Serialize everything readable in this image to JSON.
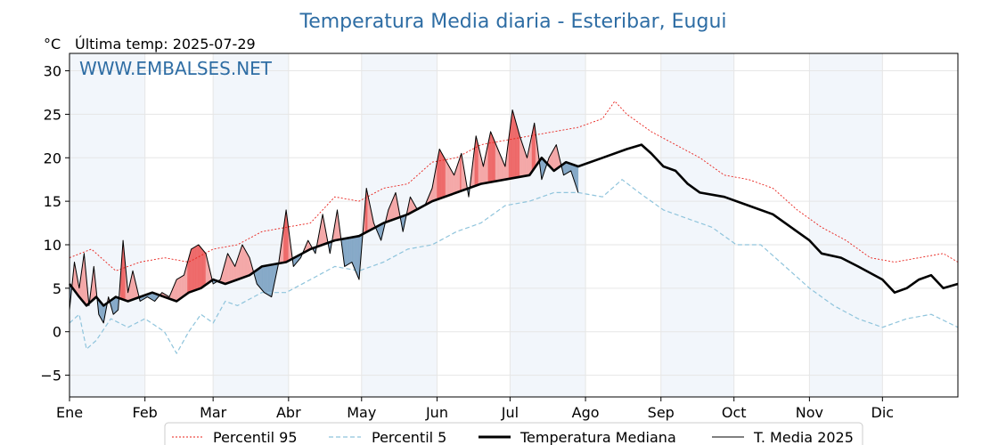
{
  "chart_data": {
    "type": "line",
    "title": "Temperatura Media diaria - Esteribar, Eugui",
    "unit_label": "°C",
    "last_temp_label": "Última temp: 2025-07-29",
    "watermark": "WWW.EMBALSES.NET",
    "x_unit": "day_of_year",
    "xlim": [
      1,
      366
    ],
    "ylim": [
      -7.5,
      32
    ],
    "y_ticks": [
      -5,
      0,
      5,
      10,
      15,
      20,
      25,
      30
    ],
    "y_tick_labels": [
      "−5",
      "0",
      "5",
      "10",
      "15",
      "20",
      "25",
      "30"
    ],
    "x_ticks": [
      1,
      32,
      60,
      91,
      121,
      152,
      182,
      213,
      244,
      274,
      305,
      335
    ],
    "x_tick_labels": [
      "Ene",
      "Feb",
      "Mar",
      "Abr",
      "May",
      "Jun",
      "Jul",
      "Ago",
      "Sep",
      "Oct",
      "Nov",
      "Dic"
    ],
    "shaded_months": [
      [
        1,
        32
      ],
      [
        60,
        91
      ],
      [
        121,
        152
      ],
      [
        182,
        213
      ],
      [
        244,
        274
      ],
      [
        305,
        335
      ]
    ],
    "grid": true,
    "colors": {
      "p95": "#e8201a",
      "p5": "#8fc4dc",
      "median": "#000000",
      "t2025": "#000000",
      "above_fill": "#f4a8a8",
      "above_strong": "#ee6a6a",
      "below_fill": "#86a9c8",
      "band": "#f2f6fb",
      "grid": "#e6e6e6"
    },
    "series": [
      {
        "name": "Percentil 95",
        "style": "dotted-red",
        "x": [
          1,
          10,
          20,
          30,
          40,
          50,
          60,
          70,
          80,
          90,
          100,
          110,
          120,
          130,
          140,
          150,
          160,
          170,
          180,
          190,
          200,
          210,
          220,
          225,
          230,
          240,
          250,
          260,
          270,
          280,
          290,
          300,
          310,
          320,
          330,
          340,
          350,
          360,
          366
        ],
        "y": [
          8.5,
          9.5,
          7.0,
          8.0,
          8.5,
          8.0,
          9.5,
          10.0,
          11.5,
          12.0,
          12.5,
          15.5,
          15.0,
          16.5,
          17.0,
          19.5,
          20.0,
          21.5,
          22.0,
          22.5,
          23.0,
          23.5,
          24.5,
          26.5,
          25.0,
          23.0,
          21.5,
          20.0,
          18.0,
          17.5,
          16.5,
          14.0,
          12.0,
          10.5,
          8.5,
          8.0,
          8.5,
          9.0,
          8.0
        ]
      },
      {
        "name": "Percentil 5",
        "style": "dashed-lightblue",
        "x": [
          1,
          5,
          8,
          12,
          18,
          25,
          32,
          40,
          45,
          50,
          55,
          60,
          65,
          70,
          80,
          90,
          100,
          110,
          120,
          130,
          140,
          150,
          160,
          170,
          180,
          190,
          200,
          210,
          220,
          228,
          235,
          245,
          255,
          265,
          275,
          285,
          295,
          305,
          315,
          325,
          335,
          345,
          355,
          366
        ],
        "y": [
          1.0,
          2.0,
          -2.0,
          -1.0,
          1.5,
          0.5,
          1.5,
          0.0,
          -2.5,
          0.0,
          2.0,
          1.0,
          3.5,
          3.0,
          4.5,
          4.5,
          6.0,
          7.5,
          7.0,
          8.0,
          9.5,
          10.0,
          11.5,
          12.5,
          14.5,
          15.0,
          16.0,
          16.0,
          15.5,
          17.5,
          16.0,
          14.0,
          13.0,
          12.0,
          10.0,
          10.0,
          7.5,
          5.0,
          3.0,
          1.5,
          0.5,
          1.5,
          2.0,
          0.5
        ]
      },
      {
        "name": "Temperatura Mediana",
        "style": "thick-black",
        "x": [
          1,
          5,
          8,
          12,
          15,
          20,
          25,
          30,
          35,
          40,
          45,
          50,
          55,
          60,
          65,
          70,
          75,
          80,
          90,
          100,
          110,
          120,
          130,
          140,
          150,
          160,
          170,
          180,
          190,
          195,
          200,
          205,
          210,
          220,
          230,
          236,
          240,
          245,
          250,
          255,
          260,
          270,
          280,
          290,
          300,
          305,
          310,
          318,
          325,
          335,
          340,
          345,
          350,
          355,
          360,
          366
        ],
        "y": [
          5.5,
          4.0,
          3.0,
          4.0,
          3.0,
          4.0,
          3.5,
          4.0,
          4.5,
          4.0,
          3.5,
          4.5,
          5.0,
          6.0,
          5.5,
          6.0,
          6.5,
          7.5,
          8.0,
          9.5,
          10.5,
          11.0,
          12.5,
          13.5,
          15.0,
          16.0,
          17.0,
          17.5,
          18.0,
          20.0,
          18.5,
          19.5,
          19.0,
          20.0,
          21.0,
          21.5,
          20.5,
          19.0,
          18.5,
          17.0,
          16.0,
          15.5,
          14.5,
          13.5,
          11.5,
          10.5,
          9.0,
          8.5,
          7.5,
          6.0,
          4.5,
          5.0,
          6.0,
          6.5,
          5.0,
          5.5
        ]
      },
      {
        "name": "T. Media 2025",
        "style": "thin-black",
        "x": [
          1,
          3,
          5,
          7,
          9,
          11,
          13,
          15,
          17,
          19,
          21,
          23,
          25,
          27,
          30,
          33,
          36,
          39,
          42,
          45,
          48,
          51,
          54,
          57,
          60,
          63,
          66,
          69,
          72,
          75,
          78,
          81,
          84,
          87,
          90,
          93,
          96,
          99,
          102,
          105,
          108,
          111,
          114,
          117,
          120,
          123,
          126,
          129,
          132,
          135,
          138,
          141,
          144,
          147,
          150,
          153,
          156,
          159,
          162,
          165,
          168,
          171,
          174,
          177,
          180,
          183,
          186,
          189,
          192,
          195,
          198,
          201,
          204,
          207,
          210
        ],
        "y": [
          2.5,
          8.0,
          5.0,
          9.0,
          3.0,
          7.5,
          2.0,
          1.0,
          4.0,
          2.0,
          2.5,
          10.5,
          4.5,
          7.0,
          3.5,
          4.0,
          3.5,
          4.5,
          4.0,
          6.0,
          6.5,
          9.5,
          10.0,
          9.0,
          5.5,
          6.0,
          9.0,
          7.5,
          10.0,
          8.5,
          5.5,
          4.5,
          4.0,
          8.0,
          14.0,
          7.5,
          8.5,
          10.5,
          9.0,
          13.5,
          9.0,
          14.0,
          7.5,
          8.0,
          6.0,
          16.5,
          12.5,
          10.5,
          14.0,
          16.0,
          11.5,
          15.5,
          14.0,
          14.5,
          16.5,
          21.0,
          19.5,
          18.0,
          20.5,
          15.5,
          22.5,
          19.0,
          23.0,
          21.0,
          19.0,
          25.5,
          22.5,
          20.0,
          24.0,
          17.5,
          20.0,
          21.5,
          18.0,
          18.5,
          16.0
        ]
      }
    ],
    "legend": {
      "placement": "bottom-center",
      "entries": [
        "Percentil 95",
        "Percentil 5",
        "Temperatura Mediana",
        "T. Media 2025"
      ]
    }
  }
}
